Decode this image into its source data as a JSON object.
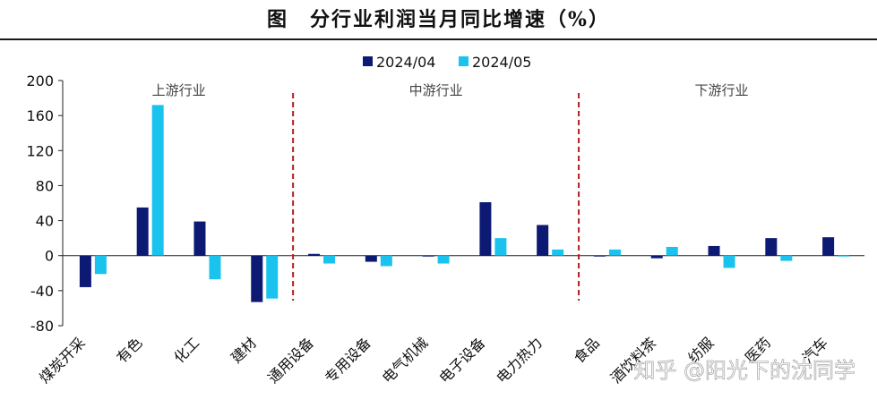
{
  "chart_data": {
    "type": "bar",
    "title": "图　分行业利润当月同比增速（%）",
    "categories": [
      "煤炭开采",
      "有色",
      "化工",
      "建材",
      "通用设备",
      "专用设备",
      "电气机械",
      "电子设备",
      "电力热力",
      "食品",
      "酒饮料茶",
      "纺服",
      "医药",
      "汽车"
    ],
    "series": [
      {
        "name": "2024/04",
        "color": "#0c1a73",
        "values": [
          -36,
          55,
          39,
          -53,
          2,
          -7,
          0,
          61,
          35,
          0,
          -3,
          11,
          20,
          21
        ]
      },
      {
        "name": "2024/05",
        "color": "#19c3ee",
        "values": [
          -21,
          172,
          -27,
          -49,
          -9,
          -12,
          -9,
          20,
          7,
          7,
          10,
          -14,
          -6,
          -1
        ]
      }
    ],
    "ylim": [
      -80,
      200
    ],
    "yticks": [
      200,
      160,
      120,
      80,
      40,
      0,
      -40,
      -80
    ],
    "legend_position": "top-center",
    "grid": false,
    "groups": [
      {
        "label": "上游行业",
        "categories": [
          "煤炭开采",
          "有色",
          "化工",
          "建材"
        ]
      },
      {
        "label": "中游行业",
        "categories": [
          "通用设备",
          "专用设备",
          "电气机械",
          "电子设备",
          "电力热力"
        ]
      },
      {
        "label": "下游行业",
        "categories": [
          "食品",
          "酒饮料茶",
          "纺服",
          "医药",
          "汽车"
        ]
      }
    ],
    "divider_color": "#b02020"
  },
  "watermark": "知乎 @阳光下的沈同学"
}
